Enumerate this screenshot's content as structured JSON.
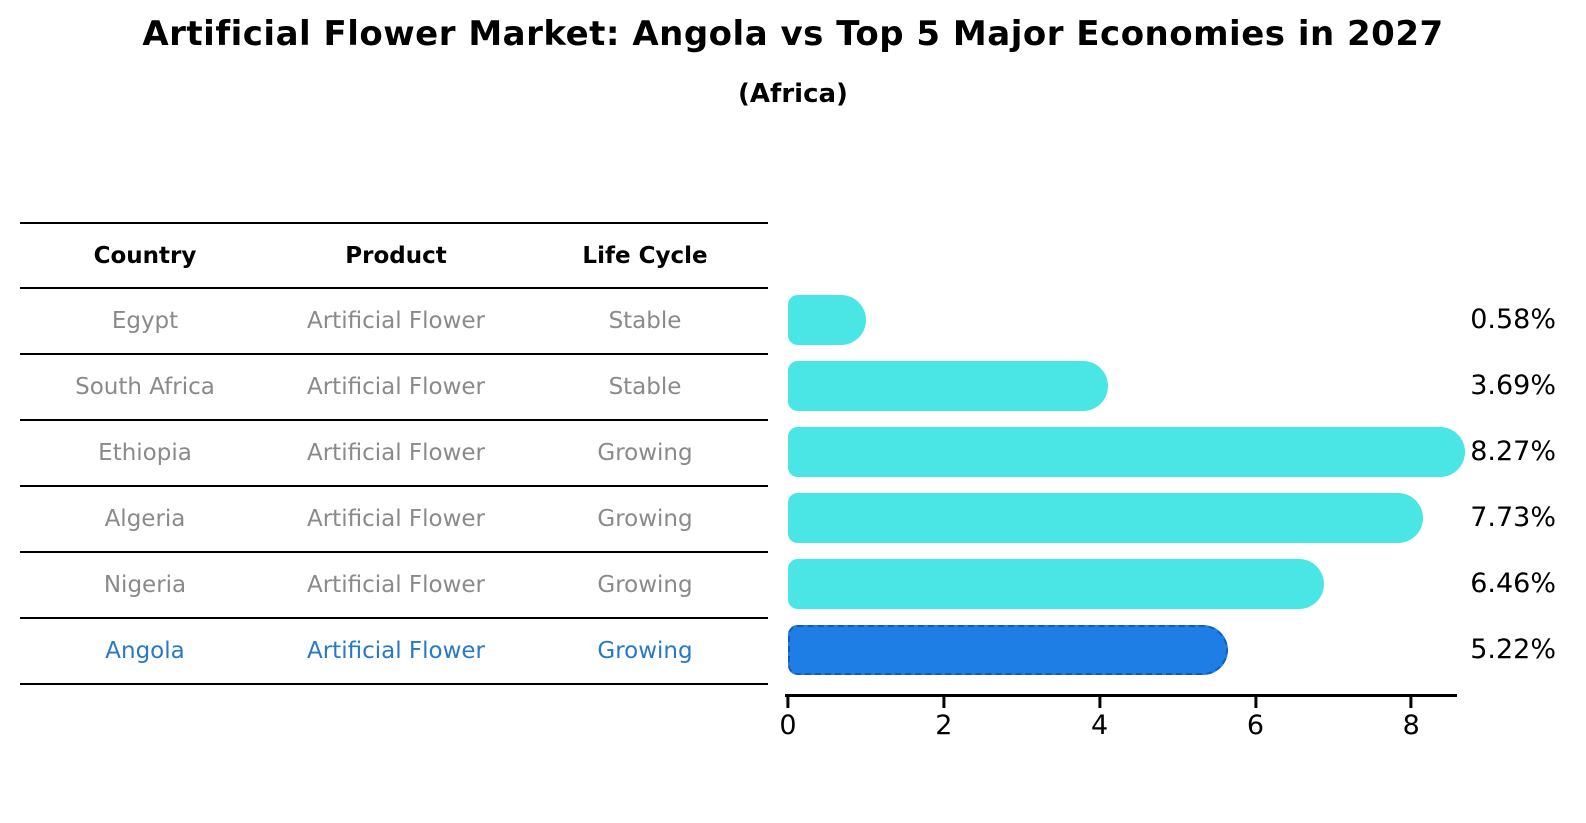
{
  "title": "Artificial Flower Market: Angola vs Top 5 Major Economies in 2027",
  "subtitle": "(Africa)",
  "table": {
    "headers": [
      "Country",
      "Product",
      "Life Cycle"
    ],
    "rows": [
      {
        "country": "Egypt",
        "product": "Artificial Flower",
        "life_cycle": "Stable"
      },
      {
        "country": "South Africa",
        "product": "Artificial Flower",
        "life_cycle": "Stable"
      },
      {
        "country": "Ethiopia",
        "product": "Artificial Flower",
        "life_cycle": "Growing"
      },
      {
        "country": "Algeria",
        "product": "Artificial Flower",
        "life_cycle": "Growing"
      },
      {
        "country": "Nigeria",
        "product": "Artificial Flower",
        "life_cycle": "Growing"
      },
      {
        "country": "Angola",
        "product": "Artificial Flower",
        "life_cycle": "Growing"
      }
    ],
    "highlighted_country": "Angola"
  },
  "chart_data": {
    "type": "bar",
    "orientation": "horizontal",
    "title": "Artificial Flower Market: Angola vs Top 5 Major Economies in 2027",
    "subtitle": "(Africa)",
    "categories": [
      "Egypt",
      "South Africa",
      "Ethiopia",
      "Algeria",
      "Nigeria",
      "Angola"
    ],
    "values": [
      0.58,
      3.69,
      8.27,
      7.73,
      6.46,
      5.22
    ],
    "value_labels": [
      "0.58%",
      "3.69%",
      "8.27%",
      "7.73%",
      "6.46%",
      "5.22%"
    ],
    "xticks": [
      0,
      2,
      4,
      6,
      8
    ],
    "xlim": [
      0,
      8.6
    ],
    "highlight_index": 5,
    "grid": false,
    "legend": false,
    "colors": {
      "bar": "#4ae5e5",
      "highlight_bar": "#1e7ee6",
      "highlight_edge": "#1259c0",
      "highlight_text": "#2879c8",
      "table_text": "#8a8a8a",
      "axis": "#000000"
    }
  }
}
